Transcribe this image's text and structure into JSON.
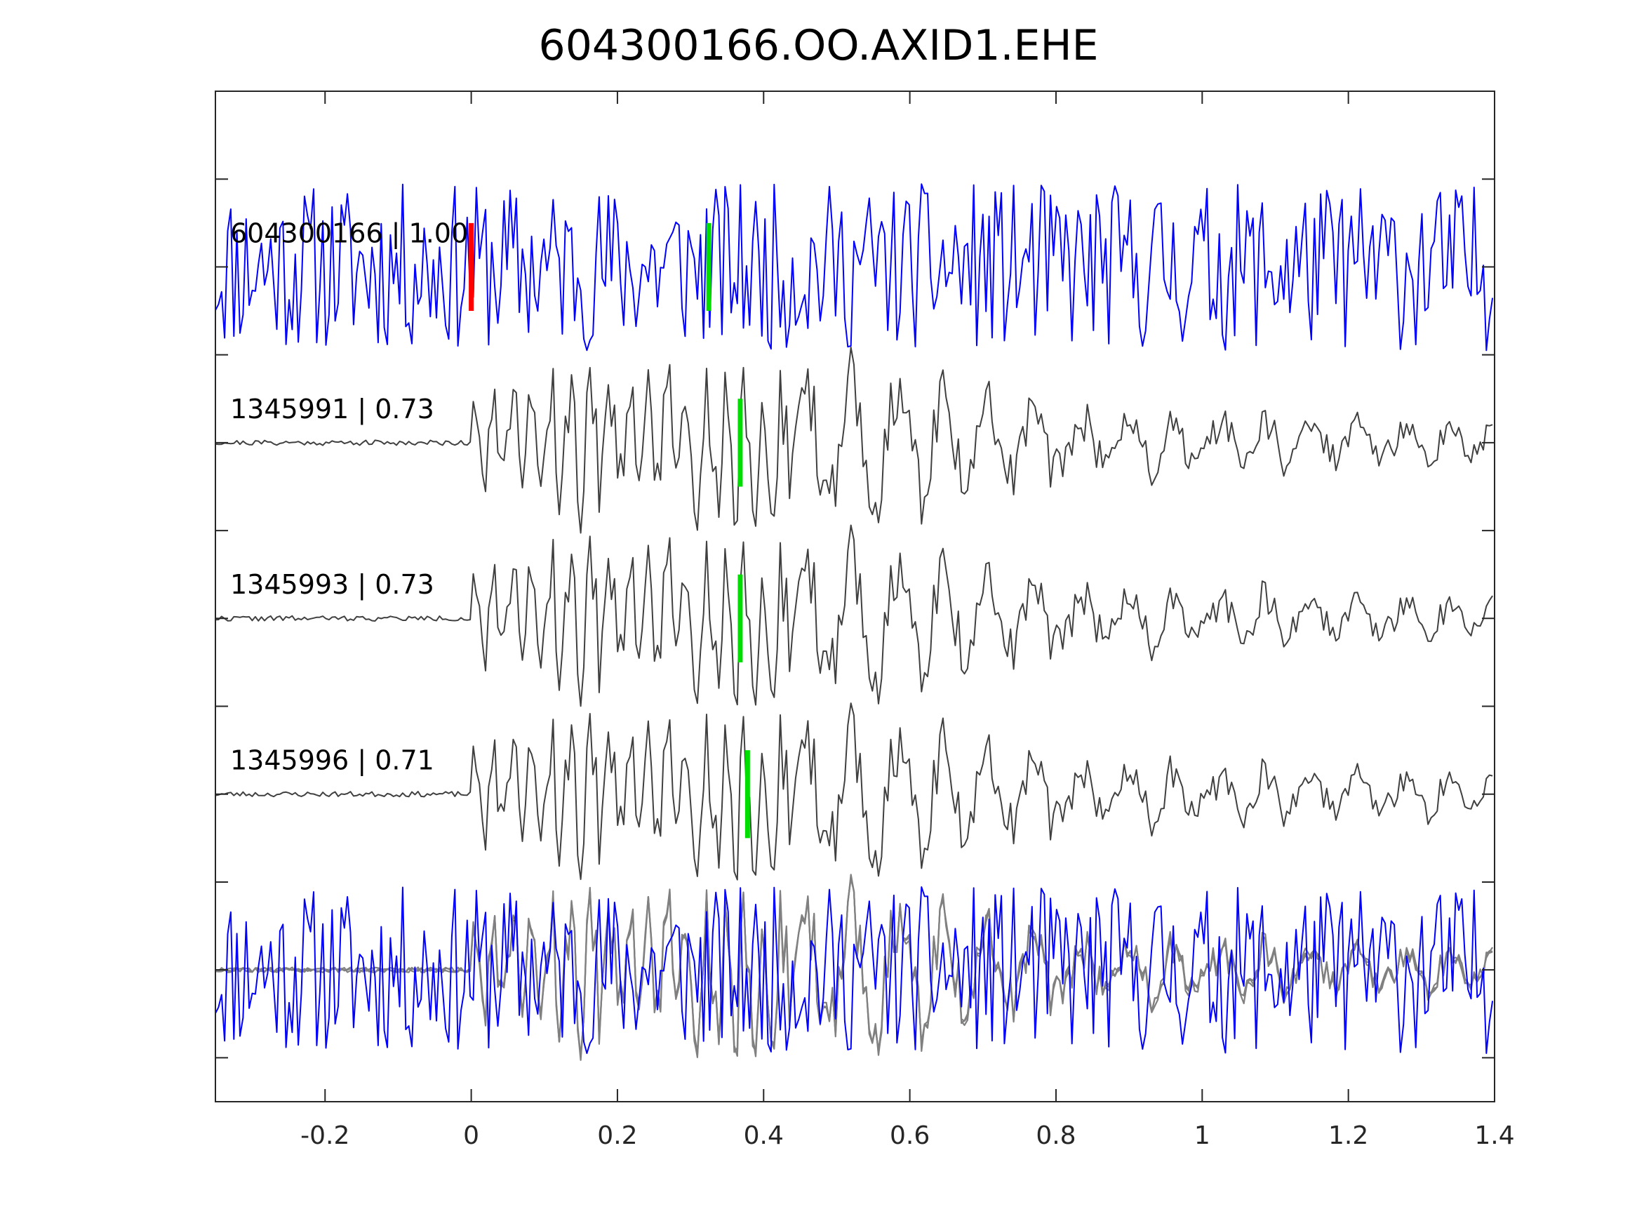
{
  "chart_data": {
    "type": "line",
    "title": "604300166.OO.AXID1.EHE",
    "xlabel": "",
    "ylabel": "",
    "xlim": [
      -0.35,
      1.4
    ],
    "ylim": [
      -4.75,
      1
    ],
    "x_ticks": [
      "-0.2",
      "0",
      "0.2",
      "0.4",
      "0.6",
      "0.8",
      "1",
      "1.2",
      "1.4"
    ],
    "x_tick_values": [
      -0.2,
      0,
      0.2,
      0.4,
      0.6,
      0.8,
      1,
      1.2,
      1.4
    ],
    "y_tick_values": [
      0.5,
      0,
      -0.5,
      -1,
      -1.5,
      -2,
      -2.5,
      -3,
      -3.5,
      -4,
      -4.5
    ],
    "grid": false,
    "colors": {
      "primary": "#0000ff",
      "template": "#404040",
      "stack": "#808080",
      "pick_red": "#ff0000",
      "pick_green": "#00dd00"
    },
    "series": [
      {
        "name": "604300166",
        "label": "604300166 | 1.00",
        "offset": 0,
        "color": "#0000ff",
        "kind": "noisy",
        "picks": [
          {
            "t": 0.0,
            "color": "#ff0000"
          },
          {
            "t": 0.325,
            "color": "#00dd00"
          }
        ]
      },
      {
        "name": "1345991",
        "label": "1345991 | 0.73",
        "offset": -1,
        "color": "#404040",
        "kind": "event",
        "picks": [
          {
            "t": 0.368,
            "color": "#00dd00"
          }
        ]
      },
      {
        "name": "1345993",
        "label": "1345993 | 0.73",
        "offset": -2,
        "color": "#404040",
        "kind": "event",
        "picks": [
          {
            "t": 0.368,
            "color": "#00dd00"
          }
        ]
      },
      {
        "name": "1345996",
        "label": "1345996 | 0.71",
        "offset": -3,
        "color": "#404040",
        "kind": "event",
        "picks": [
          {
            "t": 0.378,
            "color": "#00dd00"
          }
        ]
      },
      {
        "name": "overlay",
        "label": "",
        "offset": -4,
        "color": "#808080",
        "kind": "overlay",
        "picks": []
      }
    ]
  }
}
